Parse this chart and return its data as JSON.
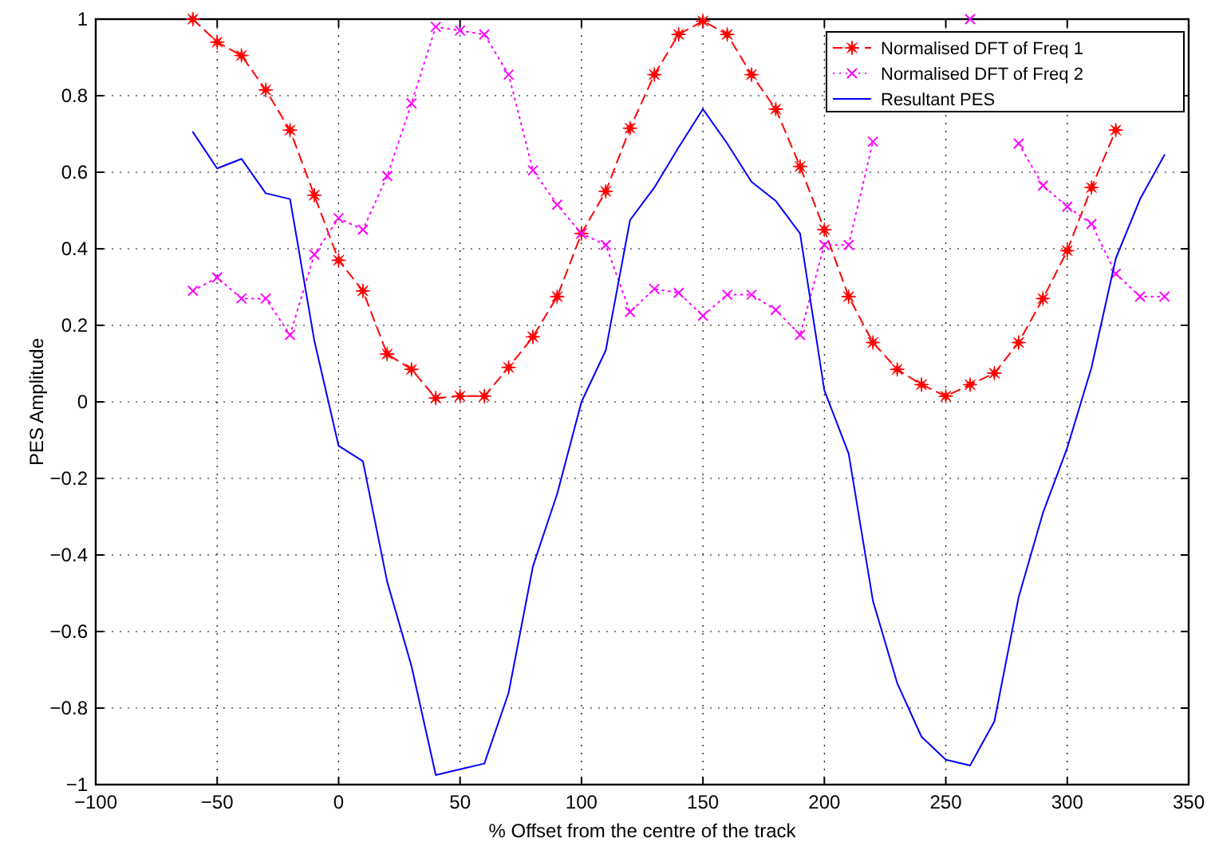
{
  "chart_data": {
    "type": "line",
    "xlabel": "% Offset from the centre of the track",
    "ylabel": "PES Amplitude",
    "x": [
      -60,
      -50,
      -40,
      -30,
      -20,
      -10,
      0,
      10,
      20,
      30,
      40,
      50,
      60,
      70,
      80,
      90,
      100,
      110,
      120,
      130,
      140,
      150,
      160,
      170,
      180,
      190,
      200,
      210,
      220,
      230,
      240,
      250,
      260,
      270,
      280,
      290,
      300,
      310,
      320,
      330,
      340
    ],
    "series": [
      {
        "name": "Normalised DFT of Freq 1",
        "color": "#ff0000",
        "marker": "star",
        "line_style": "dashed",
        "values": [
          1.0,
          0.94,
          0.905,
          0.815,
          0.71,
          0.54,
          0.37,
          0.29,
          0.125,
          0.085,
          0.01,
          0.015,
          0.015,
          0.09,
          0.17,
          0.275,
          0.44,
          0.55,
          0.715,
          0.855,
          0.96,
          0.995,
          0.96,
          0.855,
          0.765,
          0.615,
          0.45,
          0.275,
          0.155,
          0.085,
          0.045,
          0.015,
          0.045,
          0.075,
          0.155,
          0.27,
          0.395,
          0.56,
          0.71,
          null,
          null
        ]
      },
      {
        "name": "Normalised DFT of Freq 2",
        "color": "#ff00ff",
        "marker": "cross",
        "line_style": "dotted",
        "values": [
          0.29,
          0.325,
          0.27,
          0.27,
          0.175,
          0.385,
          0.48,
          0.45,
          0.59,
          0.78,
          0.98,
          0.97,
          0.96,
          0.855,
          0.605,
          0.515,
          0.44,
          0.41,
          0.235,
          0.295,
          0.285,
          0.225,
          0.28,
          0.28,
          0.24,
          0.175,
          0.41,
          0.41,
          0.68,
          null,
          null,
          null,
          1.0,
          null,
          0.675,
          0.565,
          0.51,
          0.465,
          0.335,
          0.275,
          0.275
        ]
      },
      {
        "name": "Resultant PES",
        "color": "#0000ff",
        "marker": "none",
        "line_style": "solid",
        "values": [
          0.705,
          0.61,
          0.635,
          0.545,
          0.53,
          0.16,
          -0.115,
          -0.155,
          -0.47,
          -0.69,
          -0.975,
          -0.96,
          -0.945,
          -0.76,
          -0.43,
          -0.24,
          0.0,
          0.135,
          0.475,
          0.56,
          0.665,
          0.765,
          0.675,
          0.575,
          0.525,
          0.44,
          0.03,
          -0.135,
          -0.52,
          -0.735,
          -0.875,
          -0.935,
          -0.95,
          -0.835,
          -0.51,
          -0.29,
          -0.12,
          0.09,
          0.375,
          0.53,
          0.645
        ]
      }
    ],
    "xlim": [
      -100,
      350
    ],
    "xticks": [
      -100,
      -50,
      0,
      50,
      100,
      150,
      200,
      250,
      300,
      350
    ],
    "ylim": [
      -1,
      1
    ],
    "yticks": [
      -1,
      -0.8,
      -0.6,
      -0.4,
      -0.2,
      0,
      0.2,
      0.4,
      0.6,
      0.8,
      1
    ],
    "grid": true,
    "legend": "top right"
  }
}
